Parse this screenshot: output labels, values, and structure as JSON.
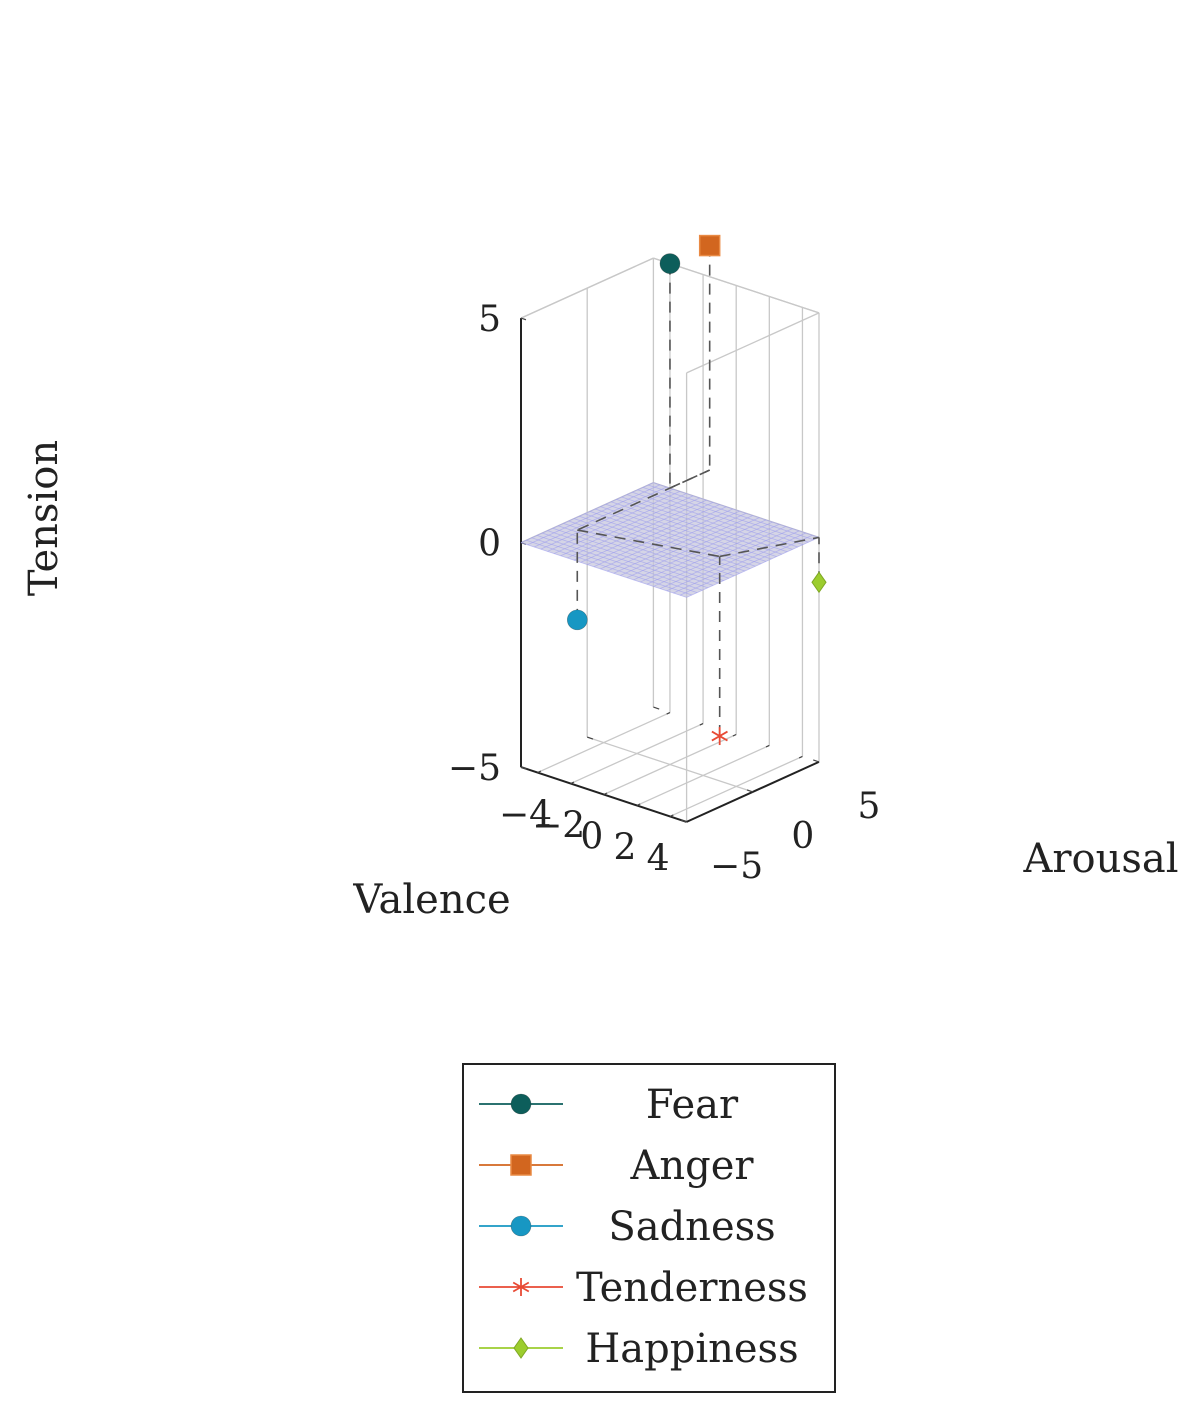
{
  "chart_data": {
    "type": "scatter3d",
    "title": "",
    "xlabel": "Valence",
    "ylabel": "Arousal",
    "zlabel": "Tension",
    "xlim": [
      -5,
      5
    ],
    "ylim": [
      -5,
      5
    ],
    "zlim": [
      -5,
      5
    ],
    "x_ticks": [
      -4,
      -2,
      0,
      2,
      4
    ],
    "x_tick_labels": [
      "−4",
      "−2",
      "0",
      "2",
      "4"
    ],
    "y_ticks": [
      -5,
      0,
      5
    ],
    "y_tick_labels": [
      "−5",
      "0",
      "5"
    ],
    "z_ticks": [
      -5,
      0,
      5
    ],
    "z_tick_labels": [
      "−5",
      "0",
      "5"
    ],
    "grid": true,
    "reference_plane": {
      "z": 0,
      "color": "#c5c5dd",
      "grid_color": "#9b9bef"
    },
    "legend_position": "bottom-center",
    "series": [
      {
        "name": "Fear",
        "marker": "circle",
        "color": "#0d5e5b",
        "point": {
          "x": -4,
          "y": 5,
          "z": 5
        }
      },
      {
        "name": "Anger",
        "marker": "square",
        "color": "#d2661f",
        "point": {
          "x": -4,
          "y": 8,
          "z": 5
        }
      },
      {
        "name": "Sadness",
        "marker": "circle",
        "color": "#1797c3",
        "point": {
          "x": -4,
          "y": -2,
          "z": -2
        }
      },
      {
        "name": "Tenderness",
        "marker": "star",
        "color": "#e84a35",
        "point": {
          "x": 3,
          "y": 0,
          "z": -4
        }
      },
      {
        "name": "Happiness",
        "marker": "diamond",
        "color": "#9ccd2e",
        "point": {
          "x": 5,
          "y": 5,
          "z": -1
        }
      }
    ]
  }
}
